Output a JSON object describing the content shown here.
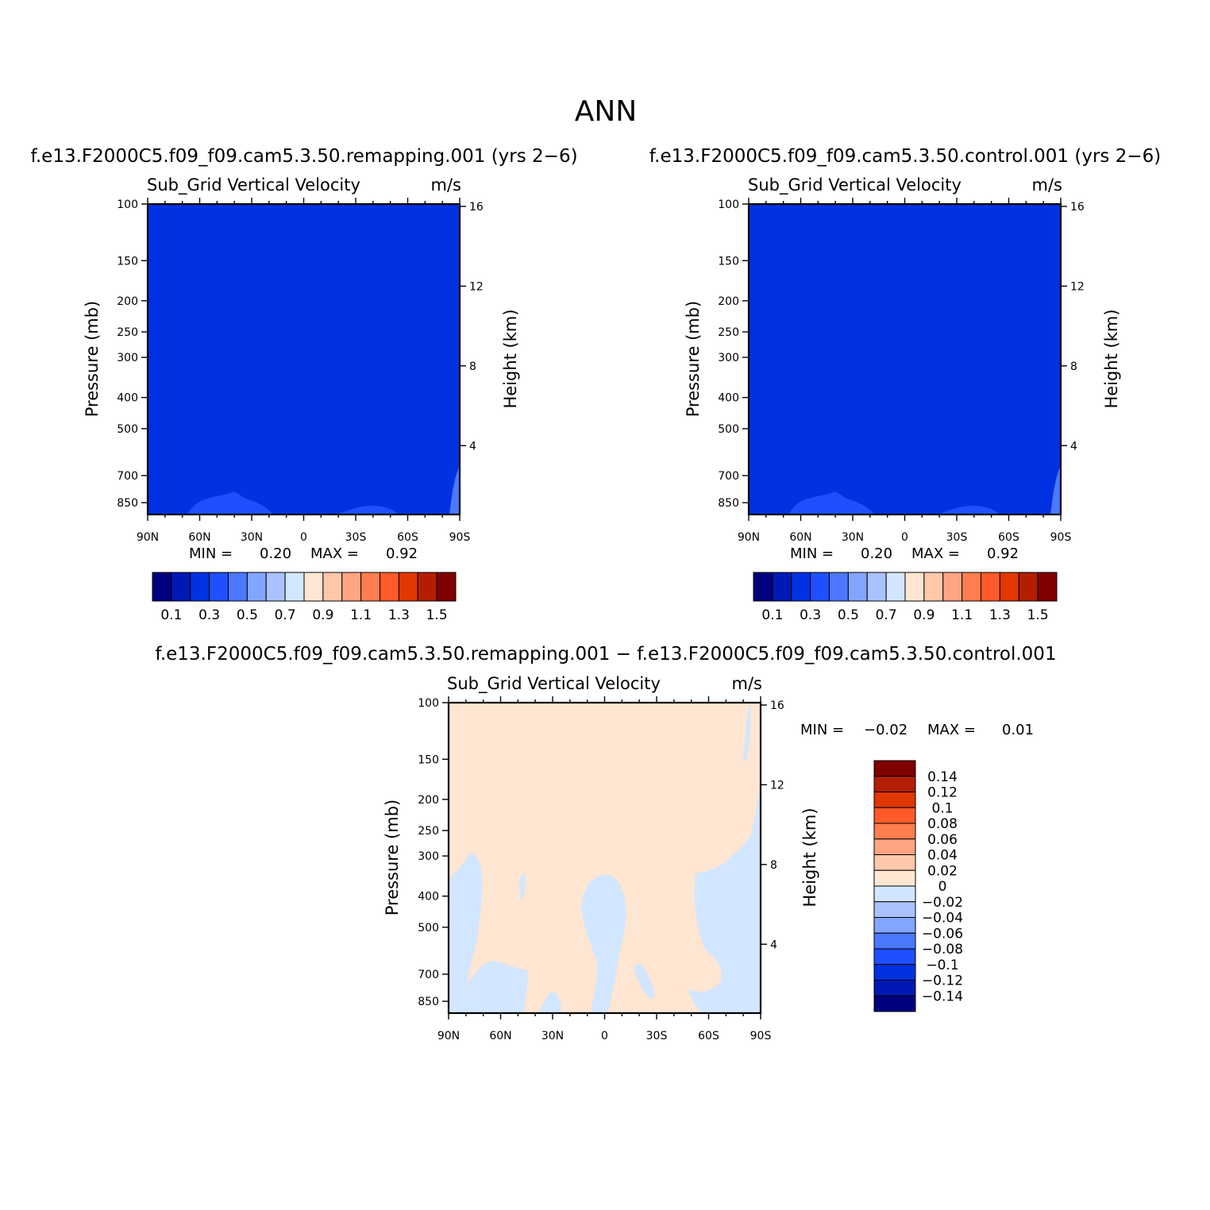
{
  "main_title": "ANN",
  "chart_data": [
    {
      "type": "contour",
      "case_title": "f.e13.F2000C5.f09_f09.cam5.3.50.remapping.001  (yrs 2−6)",
      "variable": "Sub_Grid Vertical Velocity",
      "units": "m/s",
      "ylabel": "Pressure  (mb)",
      "ylabel_right": "Height  (km)",
      "x_ticks": [
        "90N",
        "60N",
        "30N",
        "0",
        "30S",
        "60S",
        "90S"
      ],
      "x_values": [
        90,
        60,
        30,
        0,
        -30,
        -60,
        -90
      ],
      "y_ticks": [
        "100",
        "150",
        "200",
        "250",
        "300",
        "400",
        "500",
        "700",
        "850"
      ],
      "y_values": [
        100,
        150,
        200,
        250,
        300,
        400,
        500,
        700,
        850
      ],
      "ylim": [
        100,
        925
      ],
      "height_ticks": [
        "16",
        "12",
        "8",
        "4"
      ],
      "height_values": [
        16,
        12,
        8,
        4
      ],
      "min_label": "MIN =",
      "min_value": "0.20",
      "max_label": "MAX =",
      "max_value": "0.92",
      "field": {
        "background_level": 0.2,
        "regions": [
          {
            "label": "0.2-0.3 band near surface, northern mid-latitudes",
            "value": 0.3,
            "lat_range": [
              72,
              28
            ],
            "top_pressure": 820
          },
          {
            "label": "0.2-0.3 band near surface, southern mid-latitudes",
            "value": 0.3,
            "lat_range": [
              -18,
              -55
            ],
            "top_pressure": 870
          }
        ]
      },
      "colorbar": {
        "labels": [
          "0.1",
          "0.3",
          "0.5",
          "0.7",
          "0.9",
          "1.1",
          "1.3",
          "1.5"
        ],
        "colors": [
          "#000080",
          "#0019b4",
          "#0032e1",
          "#1e50ff",
          "#4b78ff",
          "#82a5ff",
          "#aac3ff",
          "#d2e6ff",
          "#ffe6d2",
          "#ffc8aa",
          "#ffa582",
          "#ff7d50",
          "#ff5a28",
          "#e13700",
          "#b41e00",
          "#800000"
        ]
      }
    },
    {
      "type": "contour",
      "case_title": "f.e13.F2000C5.f09_f09.cam5.3.50.control.001  (yrs 2−6)",
      "variable": "Sub_Grid Vertical Velocity",
      "units": "m/s",
      "ylabel": "Pressure  (mb)",
      "ylabel_right": "Height  (km)",
      "x_ticks": [
        "90N",
        "60N",
        "30N",
        "0",
        "30S",
        "60S",
        "90S"
      ],
      "x_values": [
        90,
        60,
        30,
        0,
        -30,
        -60,
        -90
      ],
      "y_ticks": [
        "100",
        "150",
        "200",
        "250",
        "300",
        "400",
        "500",
        "700",
        "850"
      ],
      "y_values": [
        100,
        150,
        200,
        250,
        300,
        400,
        500,
        700,
        850
      ],
      "ylim": [
        100,
        925
      ],
      "height_ticks": [
        "16",
        "12",
        "8",
        "4"
      ],
      "height_values": [
        16,
        12,
        8,
        4
      ],
      "min_label": "MIN =",
      "min_value": "0.20",
      "max_label": "MAX =",
      "max_value": "0.92",
      "field": {
        "background_level": 0.2,
        "regions": [
          {
            "label": "0.2-0.3 band near surface, northern mid-latitudes",
            "value": 0.3,
            "lat_range": [
              72,
              28
            ],
            "top_pressure": 820
          },
          {
            "label": "0.2-0.3 band near surface, southern mid-latitudes",
            "value": 0.3,
            "lat_range": [
              -18,
              -55
            ],
            "top_pressure": 870
          }
        ]
      },
      "colorbar": {
        "labels": [
          "0.1",
          "0.3",
          "0.5",
          "0.7",
          "0.9",
          "1.1",
          "1.3",
          "1.5"
        ],
        "colors": [
          "#000080",
          "#0019b4",
          "#0032e1",
          "#1e50ff",
          "#4b78ff",
          "#82a5ff",
          "#aac3ff",
          "#d2e6ff",
          "#ffe6d2",
          "#ffc8aa",
          "#ffa582",
          "#ff7d50",
          "#ff5a28",
          "#e13700",
          "#b41e00",
          "#800000"
        ]
      }
    },
    {
      "type": "contour",
      "case_title": "f.e13.F2000C5.f09_f09.cam5.3.50.remapping.001 − f.e13.F2000C5.f09_f09.cam5.3.50.control.001",
      "variable": "Sub_Grid Vertical Velocity",
      "units": "m/s",
      "ylabel": "Pressure  (mb)",
      "ylabel_right": "Height  (km)",
      "x_ticks": [
        "90N",
        "60N",
        "30N",
        "0",
        "30S",
        "60S",
        "90S"
      ],
      "x_values": [
        90,
        60,
        30,
        0,
        -30,
        -60,
        -90
      ],
      "y_ticks": [
        "100",
        "150",
        "200",
        "250",
        "300",
        "400",
        "500",
        "700",
        "850"
      ],
      "y_values": [
        100,
        150,
        200,
        250,
        300,
        400,
        500,
        700,
        850
      ],
      "ylim": [
        100,
        925
      ],
      "height_ticks": [
        "16",
        "12",
        "8",
        "4"
      ],
      "height_values": [
        16,
        12,
        8,
        4
      ],
      "min_label": "MIN =",
      "min_value": "−0.02",
      "max_label": "MAX =",
      "max_value": "0.01",
      "field": {
        "background_level": 0.0,
        "regions": [
          {
            "label": "slightly negative region, Arctic column",
            "value": -0.01,
            "lat_range": [
              90,
              70
            ],
            "top_pressure": 300
          },
          {
            "label": "slightly negative region, northern subtropics",
            "value": -0.01,
            "lat_range": [
              70,
              48
            ],
            "top_pressure": 650
          },
          {
            "label": "slightly negative region, equatorial column",
            "value": -0.01,
            "lat_range": [
              8,
              -12
            ],
            "top_pressure": 370
          },
          {
            "label": "slightly negative region, southern polar column",
            "value": -0.01,
            "lat_range": [
              -52,
              -90
            ],
            "top_pressure": 260
          }
        ]
      },
      "colorbar": {
        "labels": [
          "0.14",
          "0.12",
          "0.1",
          "0.08",
          "0.06",
          "0.04",
          "0.02",
          "0",
          "−0.02",
          "−0.04",
          "−0.06",
          "−0.08",
          "−0.1",
          "−0.12",
          "−0.14"
        ],
        "colors": [
          "#800000",
          "#b41e00",
          "#e13700",
          "#ff5a28",
          "#ff7d50",
          "#ffa582",
          "#ffc8aa",
          "#ffe6d2",
          "#d2e6ff",
          "#aac3ff",
          "#82a5ff",
          "#4b78ff",
          "#1e50ff",
          "#0032e1",
          "#0019b4",
          "#000080"
        ]
      }
    }
  ]
}
